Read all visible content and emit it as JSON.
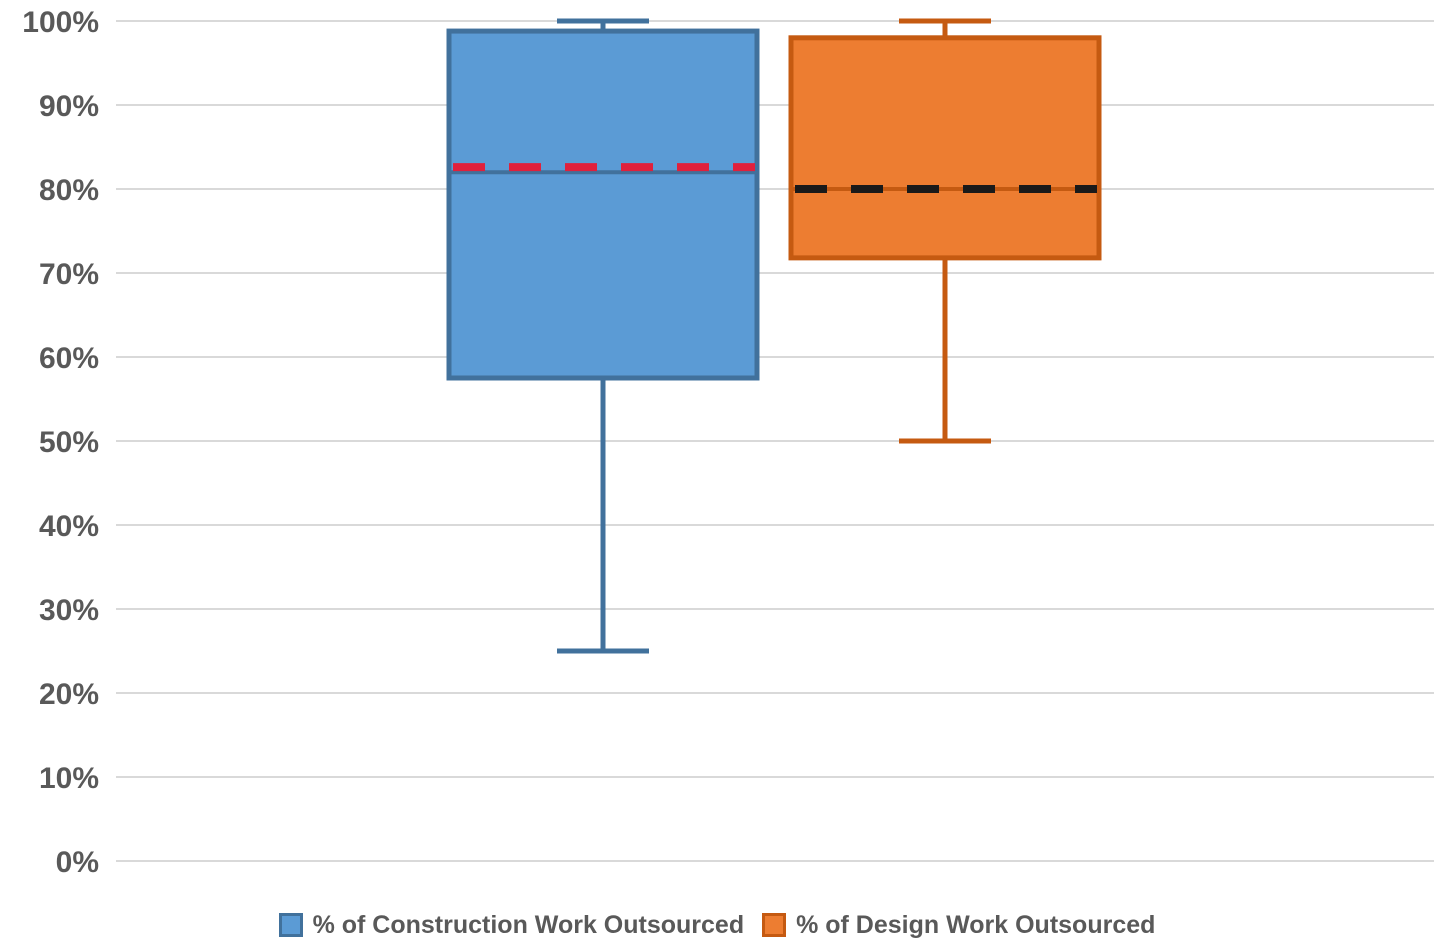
{
  "chart_data": {
    "type": "box",
    "title": "",
    "xlabel": "",
    "ylabel": "",
    "ylim": [
      0,
      100
    ],
    "y_ticks": [
      "0%",
      "10%",
      "20%",
      "30%",
      "40%",
      "50%",
      "60%",
      "70%",
      "80%",
      "90%",
      "100%"
    ],
    "grid": true,
    "legend_position": "bottom",
    "series": [
      {
        "name": "% of Construction Work Outsourced",
        "fill": "#5b9bd5",
        "stroke": "#41719c",
        "min": 25,
        "q1": 57.5,
        "median": 82,
        "q3": 98.8,
        "max": 100,
        "mean": 82.6,
        "mean_color": "#e0203c"
      },
      {
        "name": "% of Design Work Outsourced",
        "fill": "#ed7d31",
        "stroke": "#c55a11",
        "min": 50,
        "q1": 71.8,
        "median": 80,
        "q3": 98,
        "max": 100,
        "mean": 80,
        "mean_color": "#1a1a1a"
      }
    ]
  }
}
